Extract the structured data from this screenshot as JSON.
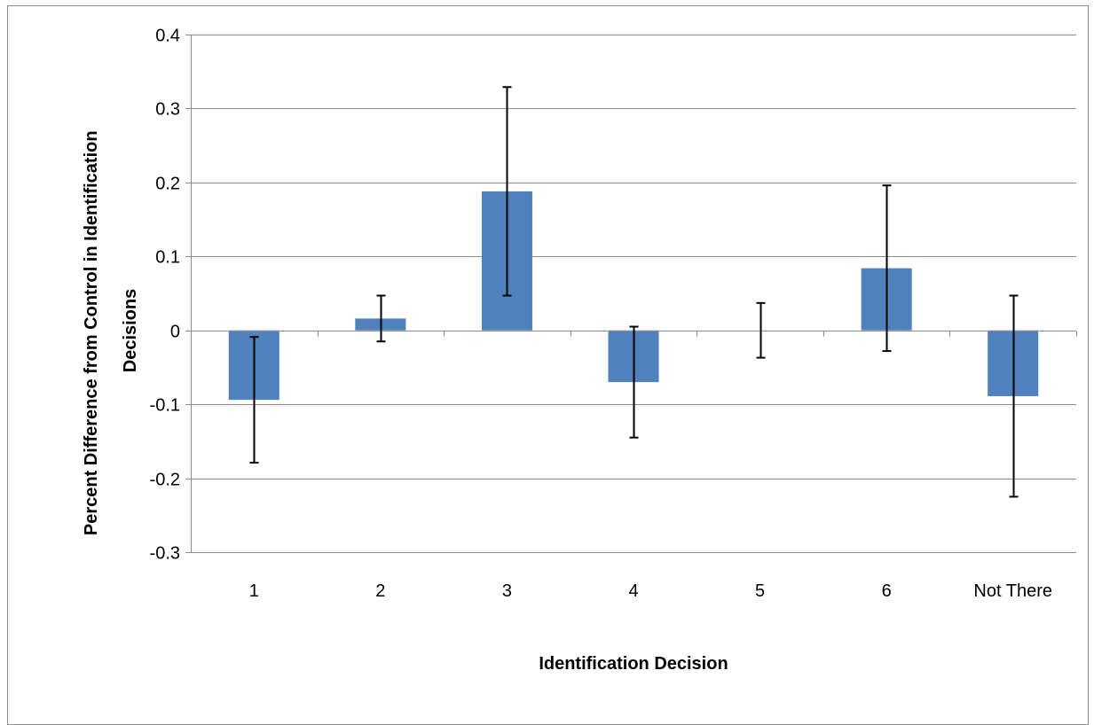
{
  "chart_data": {
    "type": "bar",
    "title": "",
    "xlabel": "Identification Decision",
    "ylabel": "Percent Difference from Control in Identification Decisions",
    "categories": [
      "1",
      "2",
      "3",
      "4",
      "5",
      "6",
      "Not There"
    ],
    "series": [
      {
        "values": [
          -0.094,
          0.016,
          0.188,
          -0.07,
          0.0,
          0.084,
          -0.089
        ],
        "error": [
          0.085,
          0.031,
          0.141,
          0.075,
          0.037,
          0.112,
          0.136
        ],
        "color": "#4f81bd"
      }
    ],
    "ylim": [
      -0.3,
      0.4
    ],
    "yticks": [
      -0.3,
      -0.2,
      -0.1,
      0,
      0.1,
      0.2,
      0.3,
      0.4
    ],
    "ytick_labels": [
      "-0.3",
      "-0.2",
      "-0.1",
      "0",
      "0.1",
      "0.2",
      "0.3",
      "0.4"
    ],
    "grid": true,
    "legend": "none"
  }
}
